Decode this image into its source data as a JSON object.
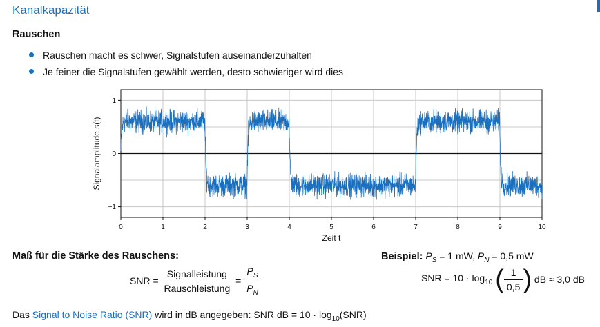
{
  "header": {
    "title": "Kanalkapazität"
  },
  "section": {
    "heading": "Rauschen",
    "bullets": [
      "Rauschen macht es schwer, Signalstufen auseinanderzuhalten",
      "Je feiner die Signalstufen gewählt werden, desto schwieriger wird dies"
    ]
  },
  "chart_data": {
    "type": "line",
    "xlabel": "Zeit t",
    "ylabel": "Signalamplitude s(t)",
    "xlim": [
      0,
      10
    ],
    "ylim": [
      -1.2,
      1.2
    ],
    "xticks": [
      0,
      1,
      2,
      3,
      4,
      5,
      6,
      7,
      8,
      9,
      10
    ],
    "yticks": [
      -1,
      0,
      1
    ],
    "ytick_labels": [
      "−1",
      "0",
      "1"
    ],
    "grid": true,
    "line_color": "#1a6fbf",
    "signal_levels": [
      {
        "from": 0,
        "to": 2,
        "level": 0.6
      },
      {
        "from": 2,
        "to": 3,
        "level": -0.6
      },
      {
        "from": 3,
        "to": 4,
        "level": 0.6
      },
      {
        "from": 4,
        "to": 7,
        "level": -0.6
      },
      {
        "from": 7,
        "to": 9,
        "level": 0.6
      },
      {
        "from": 9,
        "to": 10,
        "level": -0.6
      }
    ],
    "noise_amplitude": 0.15
  },
  "measure": {
    "heading": "Maß für die Stärke des Rauschens:",
    "snr_lhs": "SNR =",
    "numerator": "Signalleistung",
    "denominator": "Rauschleistung",
    "equals": "=",
    "ps_label": "P",
    "ps_sub": "S",
    "pn_label": "P",
    "pn_sub": "N"
  },
  "example": {
    "label": "Beispiel:",
    "values_text": "= 1 mW,",
    "values_text2": "= 0,5 mW",
    "snr_text": "SNR = 10 · log",
    "log_base": "10",
    "frac_num": "1",
    "frac_den": "0,5",
    "result": "dB ≈ 3,0 dB"
  },
  "footer": {
    "prefix": "Das",
    "link": "Signal to Noise Ratio (SNR)",
    "text": "wird in dB angegeben: SNR dB = 10 · log",
    "log_base": "10",
    "suffix": "(SNR)"
  }
}
